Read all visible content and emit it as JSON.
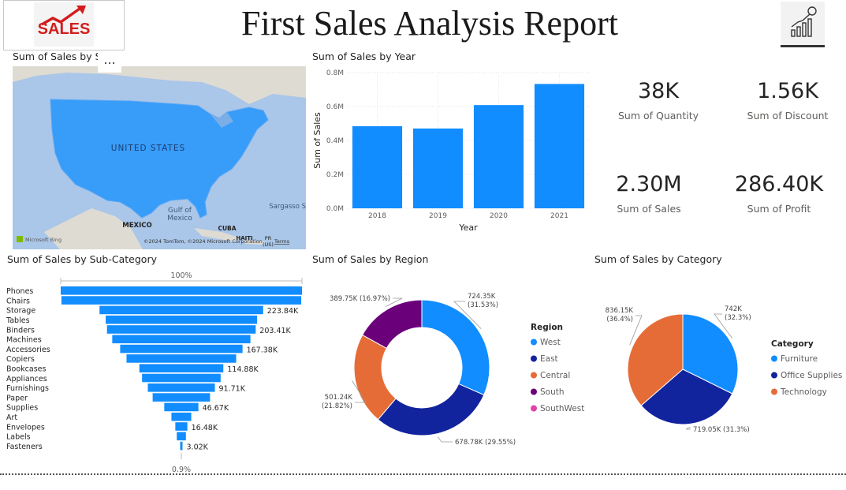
{
  "header": {
    "title": "First Sales Analysis Report",
    "logo_text": "SALES"
  },
  "colors": {
    "blue": "#118dff",
    "navy": "#12239e",
    "orange": "#e66c37",
    "purple": "#6b007b",
    "pink": "#e044a7"
  },
  "map_tile": {
    "title": "Sum of Sales by S",
    "more_label": "...",
    "labels": {
      "country": "UNITED STATES",
      "gulf": "Gulf of\nMexico",
      "mexico": "MEXICO",
      "cuba": "CUBA",
      "haiti": "HAITI",
      "pr": "PR\n(US)",
      "sargasso": "Sargasso S"
    },
    "bing": "Microsoft Bing",
    "copyright": "©2024 TomTom, ©2024 Microsoft Corporation",
    "terms": "Terms"
  },
  "kpis": [
    {
      "value": "38K",
      "label": "Sum of Quantity"
    },
    {
      "value": "1.56K",
      "label": "Sum of Discount"
    },
    {
      "value": "2.30M",
      "label": "Sum of Sales"
    },
    {
      "value": "286.40K",
      "label": "Sum of Profit"
    }
  ],
  "chart_data": [
    {
      "type": "bar",
      "title": "Sum of Sales by Year",
      "xlabel": "Year",
      "ylabel": "Sum of Sales",
      "categories": [
        "2018",
        "2019",
        "2020",
        "2021"
      ],
      "values": [
        484000,
        470500,
        608500,
        733000
      ],
      "ylim": [
        0,
        800000
      ],
      "yticks": [
        "0.0M",
        "0.2M",
        "0.4M",
        "0.6M",
        "0.8M"
      ],
      "ytick_values": [
        0,
        200000,
        400000,
        600000,
        800000
      ],
      "grid": true
    },
    {
      "type": "bar",
      "subtype": "funnel",
      "title": "Sum of Sales by Sub-Category",
      "top_label": "100%",
      "bottom_label": "0.9%",
      "categories": [
        "Phones",
        "Chairs",
        "Storage",
        "Tables",
        "Binders",
        "Machines",
        "Accessories",
        "Copiers",
        "Bookcases",
        "Appliances",
        "Furnishings",
        "Paper",
        "Supplies",
        "Art",
        "Envelopes",
        "Labels",
        "Fasteners"
      ],
      "values": [
        330000,
        328000,
        223840,
        207000,
        203410,
        189000,
        167380,
        150000,
        114880,
        107500,
        91710,
        78500,
        46670,
        27100,
        16480,
        12500,
        3020
      ],
      "data_labels": [
        "",
        "",
        "223.84K",
        "",
        "203.41K",
        "",
        "167.38K",
        "",
        "114.88K",
        "",
        "91.71K",
        "",
        "46.67K",
        "",
        "16.48K",
        "",
        "3.02K"
      ]
    },
    {
      "type": "pie",
      "subtype": "donut",
      "title": "Sum of Sales by Region",
      "legend_title": "Region",
      "legend_position": "right",
      "legend": [
        "West",
        "East",
        "Central",
        "South",
        "SouthWest"
      ],
      "slices": [
        {
          "name": "West",
          "value": 724.35,
          "label": "724.35K\n(31.53%)"
        },
        {
          "name": "East",
          "value": 678.78,
          "label": "678.78K (29.55%)"
        },
        {
          "name": "Central",
          "value": 501.24,
          "label": "501.24K\n(21.82%)"
        },
        {
          "name": "South",
          "value": 389.75,
          "label": "389.75K (16.97%)"
        }
      ]
    },
    {
      "type": "pie",
      "title": "Sum of Sales by Category",
      "legend_title": "Category",
      "legend_position": "right",
      "legend": [
        "Furniture",
        "Office Supplies",
        "Technology"
      ],
      "slices": [
        {
          "name": "Furniture",
          "value": 742,
          "label": "742K\n(32.3%)"
        },
        {
          "name": "Office Supplies",
          "value": 719.05,
          "label": "719.05K (31.3%)"
        },
        {
          "name": "Technology",
          "value": 836.15,
          "label": "836.15K\n(36.4%)"
        }
      ]
    }
  ]
}
